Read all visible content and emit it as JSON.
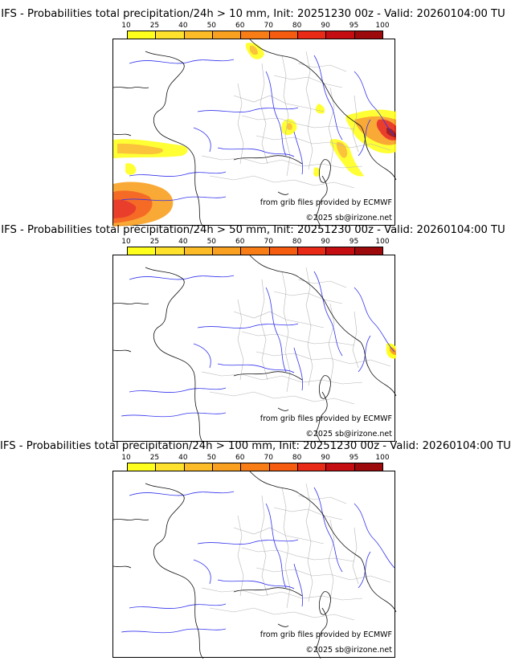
{
  "colorbar": {
    "ticks": [
      "10",
      "25",
      "40",
      "50",
      "60",
      "70",
      "80",
      "90",
      "95",
      "100"
    ],
    "colors": [
      "#ffff1e",
      "#fde12d",
      "#fbbc28",
      "#f9a021",
      "#f87d17",
      "#f55c0f",
      "#e82a16",
      "#c40e11",
      "#9c0a0b",
      "#6e0707"
    ]
  },
  "panels": [
    {
      "title": "IFS - Probabilities total precipitation/24h > 10 mm, Init: 20251230 00z - Valid: 20260104:00 TU",
      "source_credit": "from grib files provided by ECMWF",
      "copyright": "©2025 sb@irizone.net"
    },
    {
      "title": "IFS - Probabilities total precipitation/24h > 50 mm, Init: 20251230 00z - Valid: 20260104:00 TU",
      "source_credit": "from grib files provided by ECMWF",
      "copyright": "©2025 sb@irizone.net"
    },
    {
      "title": "IFS - Probabilities total precipitation/24h > 100 mm, Init: 20251230 00z - Valid: 20260104:00 TU",
      "source_credit": "from grib files provided by ECMWF",
      "copyright": "©2025 sb@irizone.net"
    }
  ]
}
